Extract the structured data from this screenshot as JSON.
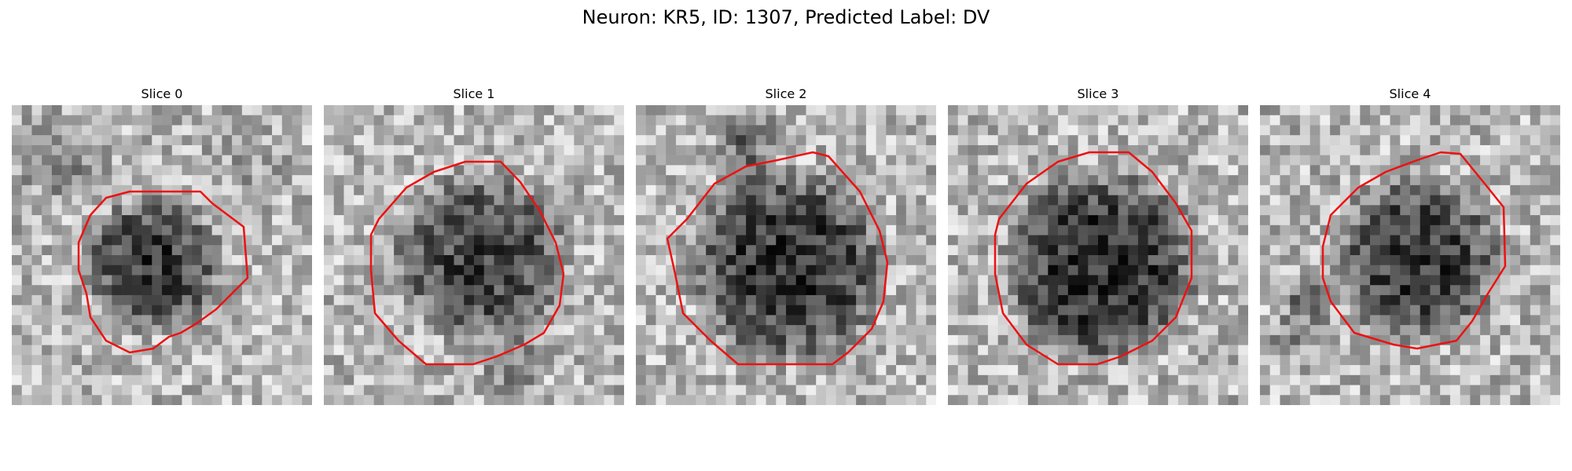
{
  "figure": {
    "title": "Neuron: KR5, ID: 1307, Predicted Label: DV",
    "contour_color": "#ee1111"
  },
  "panels": [
    {
      "title": "Slice 0"
    },
    {
      "title": "Slice 1"
    },
    {
      "title": "Slice 2"
    },
    {
      "title": "Slice 3"
    },
    {
      "title": "Slice 4"
    }
  ]
}
